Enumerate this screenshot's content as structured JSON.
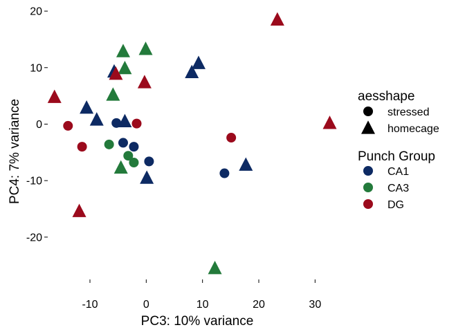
{
  "chart_data": {
    "type": "scatter",
    "xlabel": "PC3: 10% variance",
    "ylabel": "PC4: 7% variance",
    "xlim": [
      -17.5,
      35
    ],
    "ylim": [
      -27,
      20.5
    ],
    "x_ticks": [
      -10,
      0,
      10,
      20,
      30
    ],
    "y_ticks": [
      -20,
      -10,
      0,
      10,
      20
    ],
    "x_tick_labels": [
      "-10",
      "0",
      "10",
      "20",
      "30"
    ],
    "y_tick_labels": [
      "-20",
      "-10",
      "0",
      "10",
      "20"
    ],
    "grid": false,
    "legend_position": "right",
    "colors": {
      "CA1": "#0d2a63",
      "CA3": "#237a3b",
      "DG": "#9b0a1c"
    },
    "legend": {
      "shape_title": "aesshape",
      "shape_entries": [
        {
          "label": "stressed",
          "shape": "circle"
        },
        {
          "label": "homecage",
          "shape": "triangle"
        }
      ],
      "color_title": "Punch Group",
      "color_entries": [
        {
          "label": "CA1",
          "group": "CA1"
        },
        {
          "label": "CA3",
          "group": "CA3"
        },
        {
          "label": "DG",
          "group": "DG"
        }
      ]
    },
    "points": [
      {
        "x": 23.3,
        "y": 18.5,
        "group": "DG",
        "shape": "triangle"
      },
      {
        "x": -4.1,
        "y": 12.9,
        "group": "CA3",
        "shape": "triangle"
      },
      {
        "x": -0.1,
        "y": 13.3,
        "group": "CA3",
        "shape": "triangle"
      },
      {
        "x": -5.7,
        "y": 9.3,
        "group": "CA1",
        "shape": "triangle"
      },
      {
        "x": -3.8,
        "y": 9.9,
        "group": "CA3",
        "shape": "triangle"
      },
      {
        "x": -5.4,
        "y": 8.9,
        "group": "DG",
        "shape": "triangle"
      },
      {
        "x": 9.3,
        "y": 10.8,
        "group": "CA1",
        "shape": "triangle"
      },
      {
        "x": 8.1,
        "y": 9.2,
        "group": "CA1",
        "shape": "triangle"
      },
      {
        "x": -0.3,
        "y": 7.4,
        "group": "DG",
        "shape": "triangle"
      },
      {
        "x": -16.3,
        "y": 4.8,
        "group": "DG",
        "shape": "triangle"
      },
      {
        "x": -5.9,
        "y": 5.2,
        "group": "CA3",
        "shape": "triangle"
      },
      {
        "x": -10.6,
        "y": 2.9,
        "group": "CA1",
        "shape": "triangle"
      },
      {
        "x": -8.8,
        "y": 0.8,
        "group": "CA1",
        "shape": "triangle"
      },
      {
        "x": -3.8,
        "y": 0.5,
        "group": "CA1",
        "shape": "triangle"
      },
      {
        "x": 32.6,
        "y": 0.2,
        "group": "DG",
        "shape": "triangle"
      },
      {
        "x": -13.9,
        "y": -0.3,
        "group": "DG",
        "shape": "circle"
      },
      {
        "x": -5.3,
        "y": 0.2,
        "group": "CA1",
        "shape": "circle"
      },
      {
        "x": -1.7,
        "y": 0.1,
        "group": "DG",
        "shape": "circle"
      },
      {
        "x": 15.1,
        "y": -2.4,
        "group": "DG",
        "shape": "circle"
      },
      {
        "x": -11.4,
        "y": -4.0,
        "group": "DG",
        "shape": "circle"
      },
      {
        "x": -6.6,
        "y": -3.6,
        "group": "CA3",
        "shape": "circle"
      },
      {
        "x": -4.1,
        "y": -3.3,
        "group": "CA1",
        "shape": "circle"
      },
      {
        "x": -2.2,
        "y": -4.0,
        "group": "CA1",
        "shape": "circle"
      },
      {
        "x": -3.2,
        "y": -5.6,
        "group": "CA3",
        "shape": "circle"
      },
      {
        "x": -2.2,
        "y": -6.8,
        "group": "CA3",
        "shape": "circle"
      },
      {
        "x": 0.5,
        "y": -6.6,
        "group": "CA1",
        "shape": "circle"
      },
      {
        "x": 17.7,
        "y": -7.2,
        "group": "CA1",
        "shape": "triangle"
      },
      {
        "x": -4.5,
        "y": -7.7,
        "group": "CA3",
        "shape": "triangle"
      },
      {
        "x": 13.9,
        "y": -8.7,
        "group": "CA1",
        "shape": "circle"
      },
      {
        "x": 0.1,
        "y": -9.5,
        "group": "CA1",
        "shape": "triangle"
      },
      {
        "x": -11.9,
        "y": -15.4,
        "group": "DG",
        "shape": "triangle"
      },
      {
        "x": 12.2,
        "y": -25.5,
        "group": "CA3",
        "shape": "triangle"
      }
    ]
  }
}
